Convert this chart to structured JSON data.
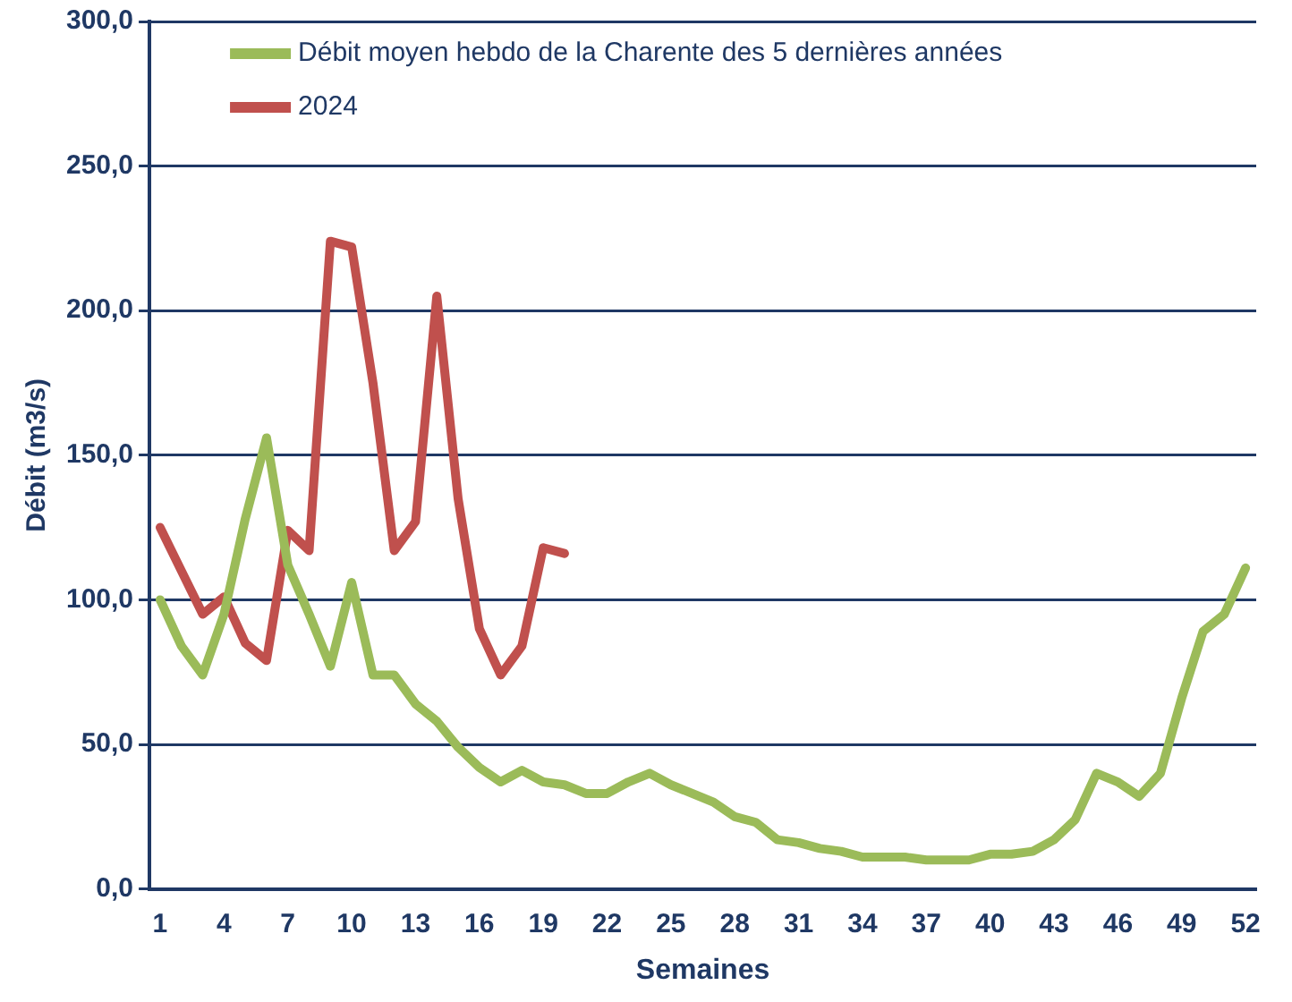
{
  "chart_data": {
    "type": "line",
    "xlabel": "Semaines",
    "ylabel": "Débit (m3/s)",
    "categories": [
      "1",
      null,
      null,
      "4",
      null,
      null,
      "7",
      null,
      null,
      "10",
      null,
      null,
      "13",
      null,
      null,
      "16",
      null,
      null,
      "19",
      null,
      null,
      "22",
      null,
      null,
      "25",
      null,
      null,
      "28",
      null,
      null,
      "31",
      null,
      null,
      "34",
      null,
      null,
      "37",
      null,
      null,
      "40",
      null,
      null,
      "43",
      null,
      null,
      "46",
      null,
      null,
      "49",
      null,
      null,
      "52"
    ],
    "series": [
      {
        "name": "Débit moyen hebdo de la Charente des 5 dernières années",
        "color": "#9bbb59",
        "values": [
          100,
          84,
          74,
          95,
          128,
          156,
          112,
          95,
          77,
          106,
          74,
          74,
          64,
          58,
          49,
          42,
          37,
          41,
          37,
          36,
          33,
          33,
          37,
          40,
          36,
          33,
          30,
          25,
          23,
          17,
          16,
          14,
          13,
          11,
          11,
          11,
          10,
          10,
          10,
          12,
          12,
          13,
          17,
          24,
          40,
          37,
          32,
          40,
          66,
          89,
          95,
          111
        ]
      },
      {
        "name": "2024",
        "color": "#c0504d",
        "values": [
          125,
          110,
          95,
          101,
          85,
          79,
          124,
          117,
          224,
          222,
          175,
          117,
          127,
          205,
          135,
          90,
          74,
          84,
          118,
          116,
          null,
          null,
          null,
          null,
          null,
          null,
          null,
          null,
          null,
          null,
          null,
          null,
          null,
          null,
          null,
          null,
          null,
          null,
          null,
          null,
          null,
          null,
          null,
          null,
          null,
          null,
          null,
          null,
          null,
          null,
          null,
          null
        ]
      }
    ],
    "ylim": [
      0,
      300
    ],
    "yticks": [
      {
        "value": 0,
        "label": "0,0"
      },
      {
        "value": 50,
        "label": "50,0"
      },
      {
        "value": 100,
        "label": "100,0"
      },
      {
        "value": 150,
        "label": "150,0"
      },
      {
        "value": 200,
        "label": "200,0"
      },
      {
        "value": 250,
        "label": "250,0"
      },
      {
        "value": 300,
        "label": "300,0"
      }
    ],
    "grid": "y",
    "legend": "top left",
    "marker": "none",
    "line_style": "solid"
  }
}
